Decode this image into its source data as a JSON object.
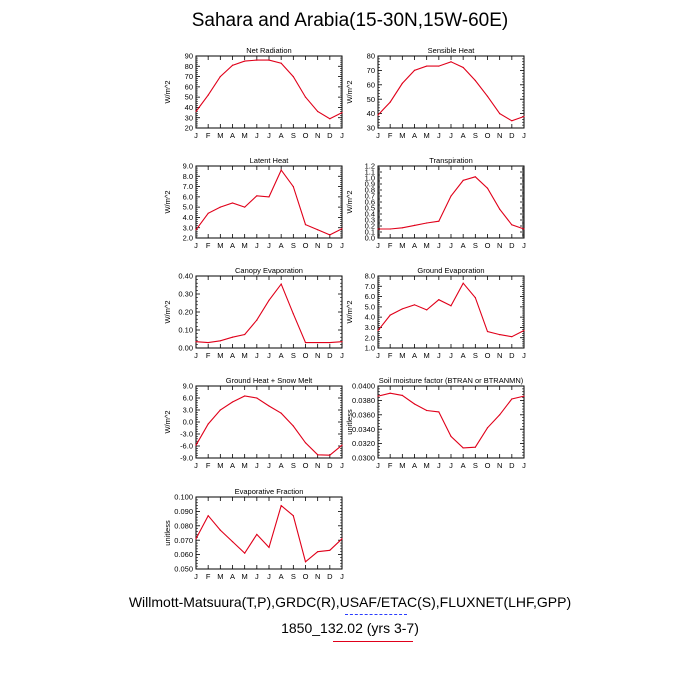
{
  "title": "Sahara and Arabia(15-30N,15W-60E)",
  "footer": {
    "line1": "Willmott-Matsuura(T,P),GRDC(R),USAF/ETAC(S),FLUXNET(LHF,GPP)",
    "line2": "1850_132.02 (yrs 3-7)"
  },
  "months": [
    "J",
    "F",
    "M",
    "A",
    "M",
    "J",
    "J",
    "A",
    "S",
    "O",
    "N",
    "D",
    "J"
  ],
  "colors": {
    "line": "#e0001a",
    "axis": "#000000"
  },
  "chart_data": [
    {
      "type": "line",
      "title": "Net Radiation",
      "ylabel": "W/m^2",
      "ylim": [
        20,
        90
      ],
      "yticks": [
        20,
        30,
        40,
        50,
        60,
        70,
        80,
        90
      ],
      "ytick_labels": [
        "20",
        "30",
        "40",
        "50",
        "60",
        "70",
        "80",
        "90"
      ],
      "series": [
        {
          "values": [
            36,
            52,
            70,
            81,
            85,
            86,
            86,
            83,
            70,
            50,
            36,
            29,
            35
          ]
        }
      ]
    },
    {
      "type": "line",
      "title": "Sensible Heat",
      "ylabel": "W/m^2",
      "ylim": [
        30,
        80
      ],
      "yticks": [
        30,
        40,
        50,
        60,
        70,
        80
      ],
      "ytick_labels": [
        "30",
        "40",
        "50",
        "60",
        "70",
        "80"
      ],
      "series": [
        {
          "values": [
            39,
            48,
            61,
            70,
            73,
            73,
            76,
            72,
            63,
            52,
            40,
            35,
            38
          ]
        }
      ]
    },
    {
      "type": "line",
      "title": "Latent Heat",
      "ylabel": "W/m^2",
      "ylim": [
        2.0,
        9.0
      ],
      "yticks": [
        2,
        3,
        4,
        5,
        6,
        7,
        8,
        9
      ],
      "ytick_labels": [
        "2.0",
        "3.0",
        "4.0",
        "5.0",
        "6.0",
        "7.0",
        "8.0",
        "9.0"
      ],
      "series": [
        {
          "values": [
            2.8,
            4.4,
            5.0,
            5.4,
            5.0,
            6.1,
            6.0,
            8.6,
            7.0,
            3.3,
            2.8,
            2.3,
            2.9
          ]
        }
      ]
    },
    {
      "type": "line",
      "title": "Transpiration",
      "ylabel": "W/m^2",
      "ylim": [
        0.0,
        1.2
      ],
      "yticks": [
        0,
        0.1,
        0.2,
        0.3,
        0.4,
        0.5,
        0.6,
        0.7,
        0.8,
        0.9,
        1.0,
        1.1,
        1.2
      ],
      "ytick_labels": [
        "0.0",
        "0.1",
        "0.2",
        "0.3",
        "0.4",
        "0.5",
        "0.6",
        "0.7",
        "0.8",
        "0.9",
        "1.0",
        "1.1",
        "1.2"
      ],
      "series": [
        {
          "values": [
            0.15,
            0.15,
            0.17,
            0.21,
            0.25,
            0.28,
            0.7,
            0.96,
            1.02,
            0.83,
            0.48,
            0.22,
            0.15
          ]
        }
      ]
    },
    {
      "type": "line",
      "title": "Canopy Evaporation",
      "ylabel": "W/m^2",
      "ylim": [
        0.0,
        0.4
      ],
      "yticks": [
        0,
        0.1,
        0.2,
        0.3,
        0.4
      ],
      "ytick_labels": [
        "0.00",
        "0.10",
        "0.20",
        "0.30",
        "0.40"
      ],
      "series": [
        {
          "values": [
            0.035,
            0.03,
            0.04,
            0.06,
            0.075,
            0.155,
            0.265,
            0.355,
            0.19,
            0.03,
            0.03,
            0.03,
            0.035
          ]
        }
      ]
    },
    {
      "type": "line",
      "title": "Ground Evaporation",
      "ylabel": "W/m^2",
      "ylim": [
        1.0,
        8.0
      ],
      "yticks": [
        1,
        2,
        3,
        4,
        5,
        6,
        7,
        8
      ],
      "ytick_labels": [
        "1.0",
        "2.0",
        "3.0",
        "4.0",
        "5.0",
        "6.0",
        "7.0",
        "8.0"
      ],
      "series": [
        {
          "values": [
            2.7,
            4.2,
            4.8,
            5.2,
            4.7,
            5.7,
            5.1,
            7.3,
            5.9,
            2.6,
            2.3,
            2.1,
            2.7
          ]
        }
      ]
    },
    {
      "type": "line",
      "title": "Ground Heat + Snow Melt",
      "ylabel": "W/m^2",
      "ylim": [
        -9.0,
        9.0
      ],
      "yticks": [
        -9,
        -6,
        -3,
        0,
        3,
        6,
        9
      ],
      "ytick_labels": [
        "-9.0",
        "-6.0",
        "-3.0",
        "0.0",
        "3.0",
        "6.0",
        "9.0"
      ],
      "series": [
        {
          "values": [
            -5.8,
            -0.5,
            3.0,
            5.0,
            6.5,
            6.0,
            4.0,
            2.2,
            -1.0,
            -5.2,
            -8.2,
            -8.3,
            -5.8
          ]
        }
      ]
    },
    {
      "type": "line",
      "title": "Soil moisture factor (BTRAN or BTRANMN)",
      "ylabel": "unitless",
      "ylim": [
        0.03,
        0.04
      ],
      "yticks": [
        0.03,
        0.032,
        0.034,
        0.036,
        0.038,
        0.04
      ],
      "ytick_labels": [
        "0.0300",
        "0.0320",
        "0.0340",
        "0.0360",
        "0.0380",
        "0.0400"
      ],
      "series": [
        {
          "values": [
            0.0386,
            0.039,
            0.0387,
            0.0375,
            0.0366,
            0.0364,
            0.033,
            0.0314,
            0.0315,
            0.0342,
            0.036,
            0.0382,
            0.0386
          ]
        }
      ]
    },
    {
      "type": "line",
      "title": "Evaporative Fraction",
      "ylabel": "unitless",
      "ylim": [
        0.05,
        0.1
      ],
      "yticks": [
        0.05,
        0.06,
        0.07,
        0.08,
        0.09,
        0.1
      ],
      "ytick_labels": [
        "0.050",
        "0.060",
        "0.070",
        "0.080",
        "0.090",
        "0.100"
      ],
      "series": [
        {
          "values": [
            0.071,
            0.087,
            0.077,
            0.069,
            0.061,
            0.074,
            0.065,
            0.094,
            0.087,
            0.055,
            0.062,
            0.063,
            0.071
          ]
        }
      ]
    }
  ]
}
